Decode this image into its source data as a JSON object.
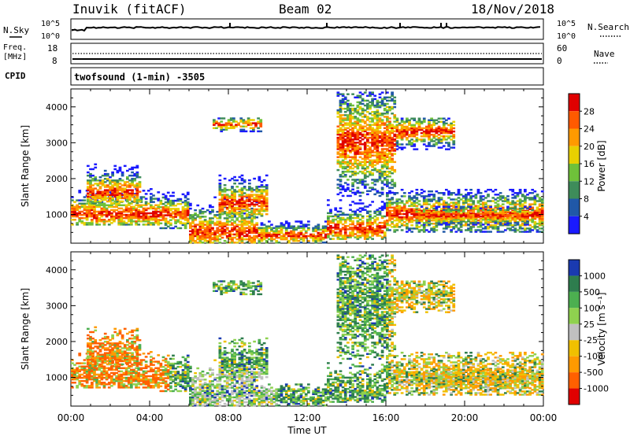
{
  "header": {
    "station": "Inuvik (fitACF)",
    "beam": "Beam 02",
    "date": "18/Nov/2018"
  },
  "panels": {
    "nsky": {
      "label": "N.Sky",
      "ytop": "10^5",
      "ybot": "10^0",
      "rtop": "10^5",
      "rbot": "10^0",
      "right_label": "N.Search"
    },
    "freq": {
      "label_line1": "Freq.",
      "label_line2": "[MHz]",
      "ytop": "18",
      "ybot": "8",
      "rtop": "60",
      "rbot": "0",
      "right_label": "Nave"
    },
    "cpid": {
      "label": "CPID",
      "text": "twofsound (1-min) -3505"
    }
  },
  "chart_data": [
    {
      "type": "heatmap",
      "name": "power",
      "ylabel": "Slant Range [km]",
      "yticks": [
        1000,
        2000,
        3000,
        4000
      ],
      "ylim": [
        200,
        4500
      ],
      "colorbar": {
        "label": "Power [dB]",
        "ticks": [
          "28",
          "24",
          "20",
          "16",
          "12",
          "8",
          "4"
        ],
        "colors": [
          "#e00000",
          "#ff5a00",
          "#ff9a00",
          "#e8d000",
          "#6fc13a",
          "#3e8c5a",
          "#2058a8",
          "#1a1aff"
        ]
      },
      "bands": [
        {
          "x0": 0.0,
          "x1": 4.5,
          "y0": 700,
          "y1": 1700,
          "core": 1000
        },
        {
          "x0": 0.8,
          "x1": 3.5,
          "y0": 1300,
          "y1": 2400,
          "core": 1600
        },
        {
          "x0": 4.5,
          "x1": 6.0,
          "y0": 600,
          "y1": 1600,
          "core": 1000
        },
        {
          "x0": 6.0,
          "x1": 9.5,
          "y0": 200,
          "y1": 1500,
          "core": 500
        },
        {
          "x0": 7.5,
          "x1": 10.0,
          "y0": 900,
          "y1": 2100,
          "core": 1300
        },
        {
          "x0": 9.5,
          "x1": 13.0,
          "y0": 200,
          "y1": 800,
          "core": 400
        },
        {
          "x0": 13.0,
          "x1": 16.0,
          "y0": 300,
          "y1": 1400,
          "core": 600
        },
        {
          "x0": 16.0,
          "x1": 24.0,
          "y0": 500,
          "y1": 1700,
          "core": 1000
        },
        {
          "x0": 17.5,
          "x1": 23.5,
          "y0": 700,
          "y1": 1200,
          "core": 950
        },
        {
          "x0": 16.5,
          "x1": 19.5,
          "y0": 2800,
          "y1": 3700,
          "core": 3300
        },
        {
          "x0": 7.2,
          "x1": 9.6,
          "y0": 3300,
          "y1": 3700,
          "core": 3500
        },
        {
          "x0": 13.5,
          "x1": 16.5,
          "y0": 1500,
          "y1": 4400,
          "core": 3000
        }
      ]
    },
    {
      "type": "heatmap",
      "name": "velocity",
      "ylabel": "Slant Range [km]",
      "yticks": [
        1000,
        2000,
        3000,
        4000
      ],
      "ylim": [
        200,
        4500
      ],
      "xlabel": "Time UT",
      "xticks": [
        "00:00",
        "04:00",
        "08:00",
        "12:00",
        "16:00",
        "20:00",
        "00:00"
      ],
      "xlim": [
        0,
        24
      ],
      "colorbar": {
        "label": "Velocity [m s⁻¹]",
        "ticks": [
          "1000",
          "500",
          "100",
          "25",
          "-25",
          "-100",
          "-500",
          "-1000"
        ],
        "colors": [
          "#1a3ab0",
          "#2e7d4e",
          "#4caf50",
          "#8fd14f",
          "#c0c0c0",
          "#f0c000",
          "#ff9a00",
          "#ff6000",
          "#e00000"
        ]
      }
    }
  ]
}
